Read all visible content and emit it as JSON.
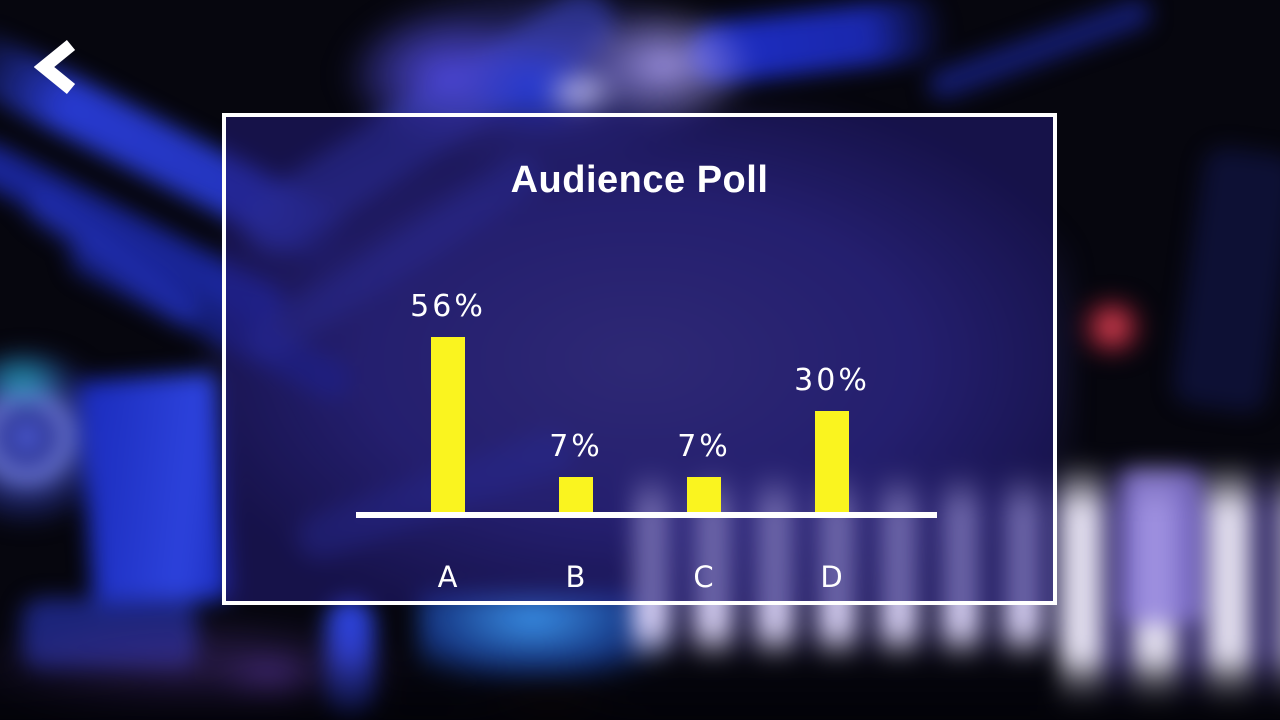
{
  "screen": {
    "name": "audience-poll-result"
  },
  "back_button": {
    "icon": "chevron-left-icon"
  },
  "panel": {
    "title": "Audience Poll"
  },
  "chart_data": {
    "type": "bar",
    "title": "Audience Poll",
    "categories": [
      "A",
      "B",
      "C",
      "D"
    ],
    "values": [
      56,
      7,
      7,
      30
    ],
    "value_labels": [
      "56%",
      "7%",
      "7%",
      "30%"
    ],
    "unit": "%",
    "ylim": [
      0,
      100
    ],
    "grid": false,
    "legend": false,
    "bar_color": "#FAF41F",
    "axis_color": "#FFFFFF",
    "label_color": "#FFFFFF"
  },
  "colors": {
    "panel_border": "#FFFFFF",
    "panel_background": "rgba(34,28,118,0.58)",
    "bar_yellow": "#FAF41F",
    "text": "#FFFFFF"
  }
}
